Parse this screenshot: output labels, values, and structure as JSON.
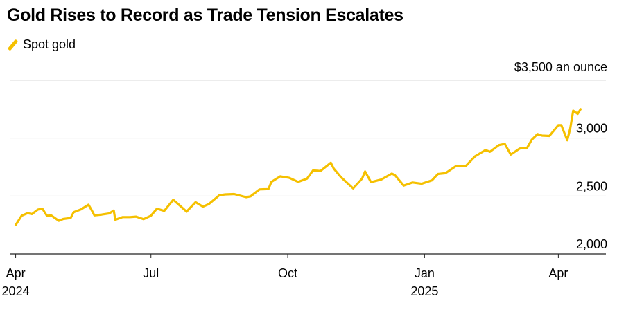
{
  "title": "Gold Rises to Record as Trade Tension Escalates",
  "legend": {
    "label": "Spot gold",
    "color": "#f5c000"
  },
  "chart_data": {
    "type": "line",
    "title": "Gold Rises to Record as Trade Tension Escalates",
    "xlabel": "",
    "ylabel": "",
    "unit_label": "$3,500 an ounce",
    "ylim": [
      2000,
      3500
    ],
    "xlim": [
      "2024-03-28",
      "2025-05-03"
    ],
    "grid": true,
    "y_grid_values": [
      2000,
      2500,
      3000,
      3500
    ],
    "y_ticks": [
      {
        "value": 3000,
        "label": "3,000"
      },
      {
        "value": 2500,
        "label": "2,500"
      },
      {
        "value": 2000,
        "label": "2,000"
      }
    ],
    "x_ticks": [
      {
        "date": "2024-04-01",
        "label": "Apr",
        "sublabel": "2024"
      },
      {
        "date": "2024-07-01",
        "label": "Jul",
        "sublabel": ""
      },
      {
        "date": "2024-10-01",
        "label": "Oct",
        "sublabel": ""
      },
      {
        "date": "2025-01-01",
        "label": "Jan",
        "sublabel": "2025"
      },
      {
        "date": "2025-04-01",
        "label": "Apr",
        "sublabel": ""
      }
    ],
    "series": [
      {
        "name": "Spot gold",
        "color": "#f5c000",
        "points": [
          [
            "2024-04-01",
            2250
          ],
          [
            "2024-04-03",
            2290
          ],
          [
            "2024-04-05",
            2330
          ],
          [
            "2024-04-09",
            2352
          ],
          [
            "2024-04-12",
            2344
          ],
          [
            "2024-04-16",
            2383
          ],
          [
            "2024-04-19",
            2390
          ],
          [
            "2024-04-22",
            2330
          ],
          [
            "2024-04-25",
            2332
          ],
          [
            "2024-04-30",
            2286
          ],
          [
            "2024-05-03",
            2302
          ],
          [
            "2024-05-08",
            2310
          ],
          [
            "2024-05-10",
            2360
          ],
          [
            "2024-05-15",
            2385
          ],
          [
            "2024-05-20",
            2425
          ],
          [
            "2024-05-22",
            2380
          ],
          [
            "2024-05-24",
            2333
          ],
          [
            "2024-05-29",
            2340
          ],
          [
            "2024-06-03",
            2350
          ],
          [
            "2024-06-06",
            2375
          ],
          [
            "2024-06-07",
            2295
          ],
          [
            "2024-06-12",
            2318
          ],
          [
            "2024-06-17",
            2318
          ],
          [
            "2024-06-21",
            2322
          ],
          [
            "2024-06-26",
            2300
          ],
          [
            "2024-07-01",
            2330
          ],
          [
            "2024-07-05",
            2390
          ],
          [
            "2024-07-10",
            2372
          ],
          [
            "2024-07-16",
            2468
          ],
          [
            "2024-07-18",
            2445
          ],
          [
            "2024-07-25",
            2365
          ],
          [
            "2024-07-31",
            2447
          ],
          [
            "2024-08-05",
            2408
          ],
          [
            "2024-08-09",
            2431
          ],
          [
            "2024-08-16",
            2507
          ],
          [
            "2024-08-20",
            2514
          ],
          [
            "2024-08-26",
            2517
          ],
          [
            "2024-09-03",
            2490
          ],
          [
            "2024-09-06",
            2497
          ],
          [
            "2024-09-12",
            2557
          ],
          [
            "2024-09-18",
            2560
          ],
          [
            "2024-09-20",
            2622
          ],
          [
            "2024-09-26",
            2670
          ],
          [
            "2024-10-02",
            2657
          ],
          [
            "2024-10-08",
            2622
          ],
          [
            "2024-10-14",
            2650
          ],
          [
            "2024-10-18",
            2721
          ],
          [
            "2024-10-23",
            2716
          ],
          [
            "2024-10-30",
            2787
          ],
          [
            "2024-11-01",
            2736
          ],
          [
            "2024-11-06",
            2660
          ],
          [
            "2024-11-14",
            2566
          ],
          [
            "2024-11-20",
            2650
          ],
          [
            "2024-11-22",
            2712
          ],
          [
            "2024-11-26",
            2620
          ],
          [
            "2024-12-03",
            2643
          ],
          [
            "2024-12-10",
            2694
          ],
          [
            "2024-12-12",
            2681
          ],
          [
            "2024-12-18",
            2590
          ],
          [
            "2024-12-24",
            2617
          ],
          [
            "2024-12-30",
            2606
          ],
          [
            "2025-01-06",
            2635
          ],
          [
            "2025-01-10",
            2690
          ],
          [
            "2025-01-15",
            2697
          ],
          [
            "2025-01-22",
            2757
          ],
          [
            "2025-01-29",
            2762
          ],
          [
            "2025-02-04",
            2843
          ],
          [
            "2025-02-11",
            2897
          ],
          [
            "2025-02-14",
            2882
          ],
          [
            "2025-02-20",
            2940
          ],
          [
            "2025-02-24",
            2950
          ],
          [
            "2025-02-28",
            2858
          ],
          [
            "2025-03-06",
            2910
          ],
          [
            "2025-03-11",
            2916
          ],
          [
            "2025-03-14",
            2984
          ],
          [
            "2025-03-18",
            3035
          ],
          [
            "2025-03-21",
            3022
          ],
          [
            "2025-03-26",
            3019
          ],
          [
            "2025-04-01",
            3113
          ],
          [
            "2025-04-03",
            3112
          ],
          [
            "2025-04-07",
            2982
          ],
          [
            "2025-04-09",
            3083
          ],
          [
            "2025-04-11",
            3237
          ],
          [
            "2025-04-14",
            3210
          ],
          [
            "2025-04-16",
            3250
          ]
        ]
      }
    ]
  }
}
